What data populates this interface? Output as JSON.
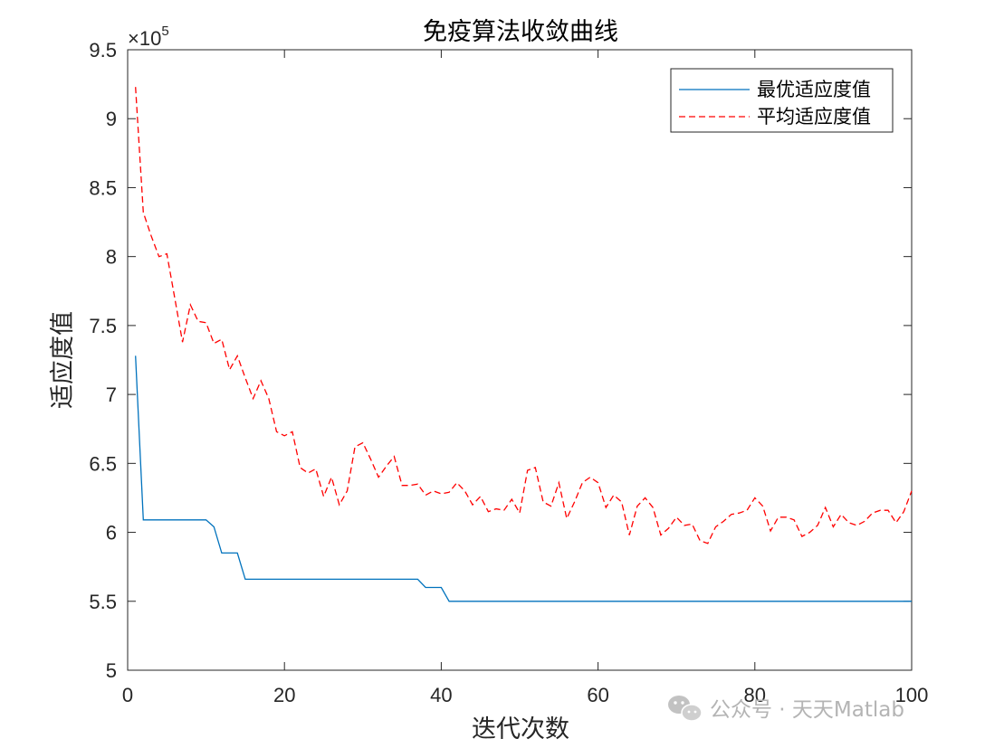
{
  "chart_data": {
    "type": "line",
    "title": "免疫算法收敛曲线",
    "xlabel": "迭代次数",
    "ylabel": "适应度值",
    "xlim": [
      0,
      100
    ],
    "ylim": [
      500000,
      950000
    ],
    "x_ticks": [
      "0",
      "20",
      "40",
      "60",
      "80",
      "100"
    ],
    "y_ticks": [
      "5",
      "5.5",
      "6",
      "6.5",
      "7",
      "7.5",
      "8",
      "8.5",
      "9",
      "9.5"
    ],
    "y_exponent": {
      "base": "×10",
      "power": "5"
    },
    "grid": false,
    "legend_position": "top-right",
    "x": [
      1,
      2,
      3,
      4,
      5,
      6,
      7,
      8,
      9,
      10,
      11,
      12,
      13,
      14,
      15,
      16,
      17,
      18,
      19,
      20,
      21,
      22,
      23,
      24,
      25,
      26,
      27,
      28,
      29,
      30,
      31,
      32,
      33,
      34,
      35,
      36,
      37,
      38,
      39,
      40,
      41,
      42,
      43,
      44,
      45,
      46,
      47,
      48,
      49,
      50,
      51,
      52,
      53,
      54,
      55,
      56,
      57,
      58,
      59,
      60,
      61,
      62,
      63,
      64,
      65,
      66,
      67,
      68,
      69,
      70,
      71,
      72,
      73,
      74,
      75,
      76,
      77,
      78,
      79,
      80,
      81,
      82,
      83,
      84,
      85,
      86,
      87,
      88,
      89,
      90,
      91,
      92,
      93,
      94,
      95,
      96,
      97,
      98,
      99,
      100
    ],
    "series": [
      {
        "name": "最优适应度值",
        "color": "#0072BD",
        "style": "solid",
        "values": [
          728000,
          609000,
          609000,
          609000,
          609000,
          609000,
          609000,
          609000,
          609000,
          609000,
          604000,
          585000,
          585000,
          585000,
          566000,
          566000,
          566000,
          566000,
          566000,
          566000,
          566000,
          566000,
          566000,
          566000,
          566000,
          566000,
          566000,
          566000,
          566000,
          566000,
          566000,
          566000,
          566000,
          566000,
          566000,
          566000,
          566000,
          560000,
          560000,
          560000,
          550000,
          550000,
          550000,
          550000,
          550000,
          550000,
          550000,
          550000,
          550000,
          550000,
          550000,
          550000,
          550000,
          550000,
          550000,
          550000,
          550000,
          550000,
          550000,
          550000,
          550000,
          550000,
          550000,
          550000,
          550000,
          550000,
          550000,
          550000,
          550000,
          550000,
          550000,
          550000,
          550000,
          550000,
          550000,
          550000,
          550000,
          550000,
          550000,
          550000,
          550000,
          550000,
          550000,
          550000,
          550000,
          550000,
          550000,
          550000,
          550000,
          550000,
          550000,
          550000,
          550000,
          550000,
          550000,
          550000,
          550000,
          550000,
          550000,
          550000
        ]
      },
      {
        "name": "平均适应度值",
        "color": "#FF0000",
        "style": "dashed",
        "values": [
          923000,
          832000,
          815000,
          800000,
          802000,
          770000,
          738000,
          765000,
          753000,
          752000,
          737000,
          740000,
          718000,
          728000,
          712000,
          697000,
          710000,
          697000,
          673000,
          670000,
          673000,
          647000,
          643000,
          646000,
          626000,
          640000,
          620000,
          630000,
          662000,
          665000,
          653000,
          640000,
          648000,
          655000,
          634000,
          634000,
          635000,
          627000,
          630000,
          628000,
          629000,
          636000,
          630000,
          620000,
          626000,
          615000,
          617000,
          616000,
          624000,
          614000,
          645000,
          647000,
          622000,
          619000,
          636000,
          610000,
          622000,
          636000,
          640000,
          636000,
          618000,
          627000,
          622000,
          598000,
          619000,
          625000,
          618000,
          598000,
          603000,
          611000,
          605000,
          606000,
          594000,
          592000,
          604000,
          608000,
          613000,
          614000,
          616000,
          625000,
          619000,
          601000,
          611000,
          611000,
          609000,
          597000,
          600000,
          605000,
          618000,
          604000,
          613000,
          607000,
          605000,
          608000,
          614000,
          616000,
          616000,
          607000,
          615000,
          630000
        ]
      }
    ]
  },
  "watermark": {
    "text": "公众号 · 天天Matlab",
    "icon": "wechat-icon"
  }
}
